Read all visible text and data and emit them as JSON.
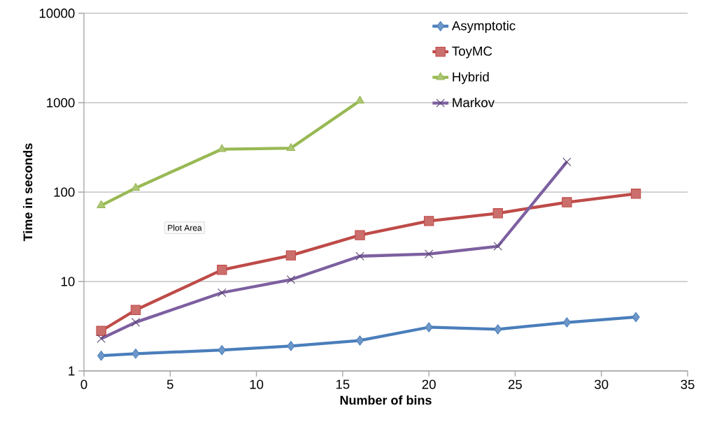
{
  "chart_data": {
    "type": "line",
    "xlabel": "Number of bins",
    "ylabel": "Time in seconds",
    "xlim": [
      0,
      35
    ],
    "xticks": [
      0,
      5,
      10,
      15,
      20,
      25,
      30,
      35
    ],
    "ylim": [
      1,
      10000
    ],
    "yticks": [
      1,
      10,
      100,
      1000,
      10000
    ],
    "log": "y",
    "grid": "y",
    "legend": "top right",
    "line_style": "solid",
    "annotations": [
      "Plot Area"
    ],
    "series": [
      {
        "name": "Asymptotic",
        "color": "#4a7ebb",
        "marker": "diamond",
        "x": [
          1,
          3,
          8,
          12,
          16,
          20,
          24,
          28,
          32
        ],
        "values": [
          1.48,
          1.56,
          1.71,
          1.9,
          2.19,
          3.08,
          2.92,
          3.49,
          4.0
        ]
      },
      {
        "name": "ToyMC",
        "color": "#be4b48",
        "marker": "square",
        "x": [
          1,
          3,
          8,
          12,
          16,
          20,
          24,
          28,
          32
        ],
        "values": [
          2.8,
          4.8,
          13.5,
          19.6,
          33,
          47.5,
          58,
          77,
          96
        ]
      },
      {
        "name": "Hybrid",
        "color": "#98b954",
        "marker": "triangle",
        "x": [
          1,
          3,
          8,
          12,
          16
        ],
        "values": [
          71,
          111,
          302,
          310,
          1050
        ]
      },
      {
        "name": "Markov",
        "color": "#7d60a0",
        "marker": "cross",
        "x": [
          1,
          3,
          8,
          12,
          16,
          20,
          24,
          28
        ],
        "values": [
          2.3,
          3.5,
          7.5,
          10.5,
          19.2,
          20.3,
          24.8,
          218
        ]
      }
    ]
  }
}
